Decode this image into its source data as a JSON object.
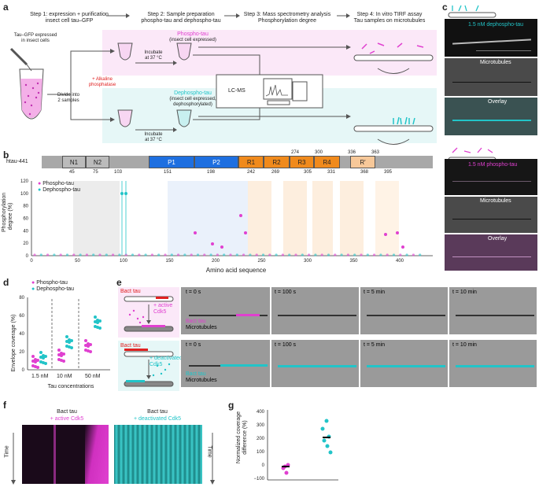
{
  "panels": {
    "a": "a",
    "b": "b",
    "c": "c",
    "d": "d",
    "e": "e",
    "f": "f",
    "g": "g"
  },
  "panel_a": {
    "step1": "Step 1: expression + purification\ninsect cell tau–GFP",
    "step2": "Step 2: Sample preparation\nphospho-tau and dephospho-tau",
    "step3": "Step 3: Mass spectrometry analysis\nPhosphorylation degree",
    "step4": "Step 4: In vitro TIRF assay\nTau samples on microtubules",
    "expressed": "Tau–GFP expressed\nin insect cells",
    "divide": "Divide into\n2 samples",
    "phospho_title": "Phospho-tau",
    "phospho_sub": "(insect cell expressed)",
    "alkaline": "+ Alkaline\nphosphatase",
    "dephospho_title": "Dephospho-tau",
    "dephospho_sub": "(insect cell expressed,\ndephosphorylated)",
    "incubate1": "Incubate\nat 37 °C",
    "incubate2": "Incubate\nat 37 °C",
    "lcms": "LC-MS"
  },
  "panel_b": {
    "protein": "htau-441",
    "domains": [
      "N1",
      "N2",
      "P1",
      "P2",
      "R1",
      "R2",
      "R3",
      "R4",
      "R'"
    ],
    "positions_bottom": [
      "45",
      "75",
      "103",
      "151",
      "198",
      "242",
      "269",
      "305",
      "331",
      "368",
      "395"
    ],
    "positions_top": [
      "274",
      "300",
      "336",
      "363"
    ],
    "ylabel": "Phosphorylation\ndegree (%)",
    "xlabel": "Amino acid sequence",
    "legend": [
      "Phospho-tau",
      "Dephospho-tau"
    ],
    "yticks": [
      "120",
      "100",
      "80",
      "60",
      "40",
      "20",
      "0"
    ],
    "xticks": [
      "0",
      "50",
      "100",
      "150",
      "200",
      "250",
      "300",
      "350",
      "400"
    ]
  },
  "panel_c": {
    "dephospho_label": "1.5 nM dephospho-tau",
    "mt1": "Microtubules",
    "overlay1": "Overlay",
    "phospho_label": "1.5 nM phospho-tau",
    "mt2": "Microtubules",
    "overlay2": "Overlay"
  },
  "panel_d": {
    "legend": [
      "Phospho-tau",
      "Dephospho-tau"
    ],
    "ylabel": "Envelope coverage (%)",
    "xlabel": "Tau concentrations",
    "categories": [
      "1.5 nM",
      "10 nM",
      "50 nM"
    ],
    "yticks": [
      "80",
      "60",
      "40",
      "20",
      "0"
    ]
  },
  "panel_e": {
    "top_title": "Bact tau",
    "top_add": "+ active\nCdk5",
    "bottom_title": "Bact tau",
    "bottom_add": "+ deactivated\nCdk5",
    "times": [
      "t = 0 s",
      "t = 100 s",
      "t = 5 min",
      "t = 10 min"
    ],
    "top_label1": "Bact tau",
    "top_label2": "Microtubules",
    "bottom_label1": "Bact tau",
    "bottom_label2": "Microtubules"
  },
  "panel_f": {
    "left_title": "Bact tau",
    "left_sub": "+ active Cdk5",
    "right_title": "Bact tau",
    "right_sub": "+ deactivated Cdk5",
    "time_left": "Time",
    "time_right": "Time"
  },
  "panel_g": {
    "ylabel": "Normalized coverage\ndifference (%)",
    "yticks": [
      "400",
      "300",
      "200",
      "100",
      "0",
      "−100"
    ]
  },
  "colors": {
    "magenta": "#e040d0",
    "cyan": "#22c4c8",
    "orange": "#f08a1c",
    "blue": "#1e6fe0",
    "gray": "#a8a8a8"
  }
}
